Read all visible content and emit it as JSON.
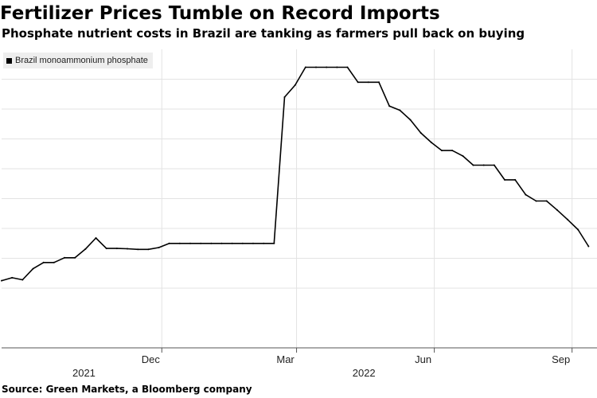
{
  "title": "Fertilizer Prices Tumble on Record Imports",
  "subtitle": "Phosphate nutrient costs in Brazil are tanking as farmers pull back on buying",
  "source": "Source: Green Markets, a Bloomberg company",
  "colors": {
    "line": "#000000",
    "grid": "#e3e3e3",
    "background": "#ffffff"
  },
  "chart_data": {
    "type": "line",
    "legend": [
      "Brazil monoammonium phosphate"
    ],
    "legend_position": "top-left",
    "grid": true,
    "x_ticks": [
      {
        "label": "Dec",
        "date": "2021-12-01"
      },
      {
        "label": "Mar",
        "date": "2022-03-01"
      },
      {
        "label": "Jun",
        "date": "2022-06-01"
      },
      {
        "label": "Sep",
        "date": "2022-09-01"
      }
    ],
    "year_labels": [
      {
        "label": "2021",
        "date": "2021-10-10"
      },
      {
        "label": "2022",
        "date": "2022-04-15"
      }
    ],
    "xlim": [
      "2021-08-16",
      "2022-09-15"
    ],
    "ylim": [
      0,
      100
    ],
    "y_gridlines": [
      20,
      30,
      40,
      50,
      60,
      70,
      80,
      90
    ],
    "series": [
      {
        "name": "Brazil monoammonium phosphate",
        "x": [
          "2021-08-16",
          "2021-08-23",
          "2021-08-30",
          "2021-09-06",
          "2021-09-13",
          "2021-09-20",
          "2021-09-27",
          "2021-10-04",
          "2021-10-11",
          "2021-10-18",
          "2021-10-25",
          "2021-11-01",
          "2021-11-08",
          "2021-11-15",
          "2021-11-22",
          "2021-11-29",
          "2021-12-06",
          "2021-12-13",
          "2021-12-20",
          "2021-12-27",
          "2022-01-03",
          "2022-01-10",
          "2022-01-17",
          "2022-01-24",
          "2022-01-31",
          "2022-02-07",
          "2022-02-14",
          "2022-02-21",
          "2022-02-28",
          "2022-03-07",
          "2022-03-14",
          "2022-03-21",
          "2022-03-28",
          "2022-04-04",
          "2022-04-11",
          "2022-04-18",
          "2022-04-25",
          "2022-05-02",
          "2022-05-09",
          "2022-05-16",
          "2022-05-23",
          "2022-05-30",
          "2022-06-06",
          "2022-06-13",
          "2022-06-20",
          "2022-06-27",
          "2022-07-04",
          "2022-07-11",
          "2022-07-18",
          "2022-07-25",
          "2022-08-01",
          "2022-08-08",
          "2022-08-15",
          "2022-08-22",
          "2022-08-29",
          "2022-09-05",
          "2022-09-12"
        ],
        "values": [
          22.5,
          23.5,
          22.8,
          26.5,
          28.6,
          28.6,
          30.2,
          30.2,
          33.1,
          36.8,
          33.3,
          33.3,
          33.2,
          33.0,
          33.0,
          33.6,
          35.0,
          35.0,
          35.0,
          35.0,
          35.0,
          35.0,
          35.0,
          35.0,
          35.0,
          35.0,
          35.0,
          84.0,
          88.0,
          94.0,
          94.0,
          94.0,
          94.0,
          94.0,
          89.0,
          89.0,
          89.0,
          81.0,
          79.6,
          76.4,
          72.0,
          68.8,
          66.1,
          66.1,
          64.3,
          61.2,
          61.2,
          61.2,
          56.3,
          56.3,
          51.3,
          49.2,
          49.2,
          46.2,
          43.0,
          39.6,
          34.0
        ]
      }
    ]
  }
}
